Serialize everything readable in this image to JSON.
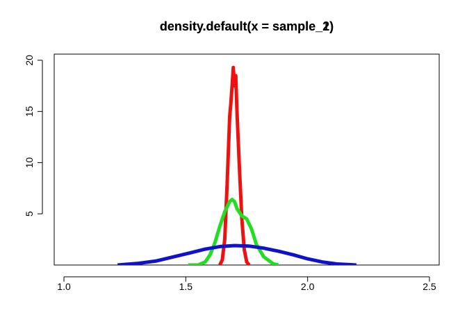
{
  "chart_data": {
    "type": "line",
    "title": "density.default(x = sample_2)",
    "title_overlay": "density.default(x = sample_1)",
    "xlabel": "",
    "ylabel": "",
    "xlim": [
      0.96,
      2.54
    ],
    "ylim": [
      0,
      20.6
    ],
    "x_ticks": [
      1.0,
      1.5,
      2.0,
      2.5
    ],
    "x_tick_labels": [
      "1.0",
      "1.5",
      "2.0",
      "2.5"
    ],
    "y_ticks": [
      5,
      10,
      15,
      20
    ],
    "y_tick_labels": [
      "5",
      "10",
      "15",
      "20"
    ],
    "grid": false,
    "series": [
      {
        "color": "#ee1111",
        "x": [
          1.64,
          1.65,
          1.66,
          1.67,
          1.68,
          1.685,
          1.69,
          1.695,
          1.7,
          1.705,
          1.71,
          1.72,
          1.73,
          1.74,
          1.75,
          1.76
        ],
        "y": [
          0.0,
          0.5,
          2.5,
          8.0,
          14.5,
          15.8,
          17.5,
          19.3,
          17.5,
          18.5,
          15.0,
          9.5,
          4.5,
          1.5,
          0.3,
          0.0
        ]
      },
      {
        "color": "#22dd22",
        "x": [
          1.51,
          1.55,
          1.58,
          1.6,
          1.62,
          1.64,
          1.66,
          1.68,
          1.69,
          1.7,
          1.71,
          1.73,
          1.75,
          1.77,
          1.79,
          1.82,
          1.86,
          1.88
        ],
        "y": [
          0.0,
          0.0,
          0.3,
          1.0,
          2.2,
          3.8,
          5.2,
          6.2,
          6.4,
          6.2,
          5.5,
          4.8,
          4.5,
          3.5,
          2.0,
          0.8,
          0.1,
          0.0
        ]
      },
      {
        "color": "#1111cc",
        "x": [
          1.22,
          1.3,
          1.38,
          1.45,
          1.52,
          1.58,
          1.64,
          1.7,
          1.76,
          1.82,
          1.88,
          1.94,
          2.0,
          2.06,
          2.12,
          2.2
        ],
        "y": [
          0.0,
          0.15,
          0.4,
          0.8,
          1.2,
          1.55,
          1.8,
          1.9,
          1.85,
          1.65,
          1.35,
          1.0,
          0.6,
          0.3,
          0.1,
          0.0
        ]
      }
    ]
  }
}
